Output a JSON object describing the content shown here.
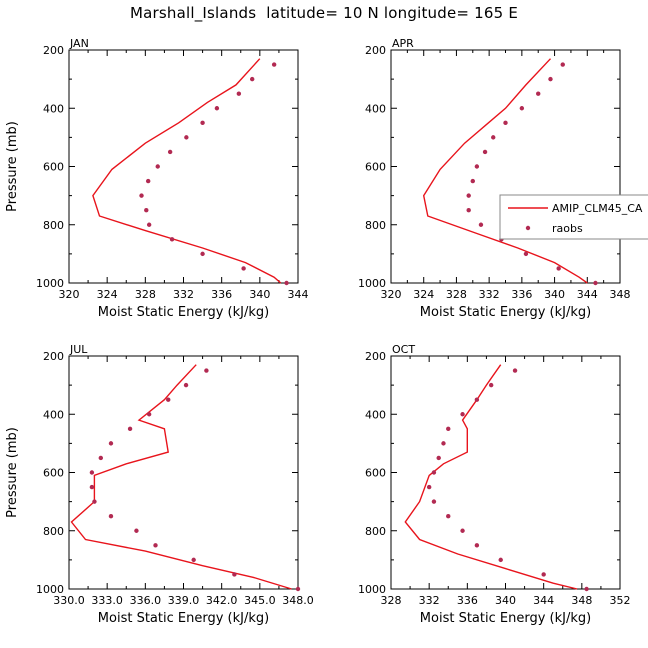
{
  "title": "Marshall_Islands  latitude= 10 N longitude= 165 E",
  "colors": {
    "model": "#e8141c",
    "obs": "#b22a52",
    "axis": "#000000"
  },
  "legend": {
    "entries": [
      "AMIP_CLM45_CA",
      "raobs"
    ],
    "placement": "right, overlapping APR panel"
  },
  "chart_data": [
    {
      "type": "line",
      "panel": "JAN",
      "xlabel": "Moist Static Energy (kJ/kg)",
      "ylabel": "Pressure (mb)",
      "xlim": [
        320,
        344
      ],
      "ylim": [
        1000,
        200
      ],
      "xticks": [
        "320",
        "324",
        "328",
        "332",
        "336",
        "340",
        "344"
      ],
      "yticks": [
        "200",
        "400",
        "600",
        "800",
        "1000"
      ],
      "series": [
        {
          "name": "AMIP_CLM45_CA",
          "style": "line",
          "pressure": [
            230,
            320,
            380,
            450,
            520,
            610,
            700,
            770,
            820,
            880,
            930,
            980,
            1000
          ],
          "values": [
            340.0,
            337.5,
            334.5,
            331.5,
            328.0,
            324.5,
            322.5,
            323.2,
            328.0,
            334.0,
            338.5,
            341.5,
            342.2
          ]
        },
        {
          "name": "raobs",
          "style": "markers",
          "pressure": [
            250,
            300,
            350,
            400,
            450,
            500,
            550,
            600,
            650,
            700,
            750,
            800,
            850,
            900,
            950,
            1000
          ],
          "values": [
            341.5,
            339.2,
            337.8,
            335.5,
            334.0,
            332.3,
            330.6,
            329.3,
            328.3,
            327.6,
            328.1,
            328.4,
            330.8,
            334.0,
            338.3,
            342.8
          ]
        }
      ]
    },
    {
      "type": "line",
      "panel": "APR",
      "xlabel": "Moist Static Energy (kJ/kg)",
      "ylabel": "",
      "xlim": [
        320,
        348
      ],
      "ylim": [
        1000,
        200
      ],
      "xticks": [
        "320",
        "324",
        "328",
        "332",
        "336",
        "340",
        "344",
        "348"
      ],
      "yticks": [
        "200",
        "400",
        "600",
        "800",
        "1000"
      ],
      "series": [
        {
          "name": "AMIP_CLM45_CA",
          "style": "line",
          "pressure": [
            230,
            320,
            400,
            460,
            520,
            610,
            700,
            770,
            830,
            880,
            930,
            980,
            1000
          ],
          "values": [
            339.5,
            336.5,
            334.0,
            331.5,
            329.0,
            326.0,
            324.0,
            324.5,
            330.5,
            335.5,
            340.0,
            343.0,
            344.0
          ]
        },
        {
          "name": "raobs",
          "style": "markers",
          "pressure": [
            250,
            300,
            350,
            400,
            450,
            500,
            550,
            600,
            650,
            700,
            750,
            800,
            850,
            900,
            950,
            1000
          ],
          "values": [
            341.0,
            339.5,
            338.0,
            336.0,
            334.0,
            332.5,
            331.5,
            330.5,
            330.0,
            329.5,
            329.5,
            331.0,
            333.5,
            336.5,
            340.5,
            345.0
          ]
        }
      ]
    },
    {
      "type": "line",
      "panel": "JUL",
      "xlabel": "Moist Static Energy (kJ/kg)",
      "ylabel": "Pressure (mb)",
      "xlim": [
        330,
        348
      ],
      "ylim": [
        1000,
        200
      ],
      "xticks": [
        "330.0",
        "333.0",
        "336.0",
        "339.0",
        "342.0",
        "345.0",
        "348.0"
      ],
      "yticks": [
        "200",
        "400",
        "600",
        "800",
        "1000"
      ],
      "series": [
        {
          "name": "AMIP_CLM45_CA",
          "style": "line",
          "pressure": [
            230,
            300,
            350,
            420,
            450,
            530,
            570,
            610,
            700,
            770,
            830,
            870,
            920,
            960,
            1000
          ],
          "values": [
            340.0,
            338.5,
            337.5,
            335.5,
            337.5,
            337.8,
            334.5,
            332.0,
            332.0,
            330.2,
            331.3,
            336.0,
            340.5,
            344.5,
            347.5
          ]
        },
        {
          "name": "raobs",
          "style": "markers",
          "pressure": [
            250,
            300,
            350,
            400,
            450,
            500,
            550,
            600,
            650,
            700,
            750,
            800,
            850,
            900,
            950,
            1000
          ],
          "values": [
            340.8,
            339.2,
            337.8,
            336.3,
            334.8,
            333.3,
            332.5,
            331.8,
            331.8,
            332.0,
            333.3,
            335.3,
            336.8,
            339.8,
            343.0,
            348.0
          ]
        }
      ]
    },
    {
      "type": "line",
      "panel": "OCT",
      "xlabel": "Moist Static Energy (kJ/kg)",
      "ylabel": "",
      "xlim": [
        328,
        352
      ],
      "ylim": [
        1000,
        200
      ],
      "xticks": [
        "328",
        "332",
        "336",
        "340",
        "344",
        "348",
        "352"
      ],
      "yticks": [
        "200",
        "400",
        "600",
        "800",
        "1000"
      ],
      "series": [
        {
          "name": "AMIP_CLM45_CA",
          "style": "line",
          "pressure": [
            230,
            300,
            350,
            420,
            450,
            530,
            570,
            610,
            700,
            770,
            830,
            880,
            930,
            980,
            1000
          ],
          "values": [
            339.5,
            338.0,
            337.0,
            335.5,
            336.0,
            336.0,
            333.5,
            332.0,
            331.0,
            329.5,
            331.0,
            335.0,
            340.0,
            345.0,
            347.5
          ]
        },
        {
          "name": "raobs",
          "style": "markers",
          "pressure": [
            250,
            300,
            350,
            400,
            450,
            500,
            550,
            600,
            650,
            700,
            750,
            800,
            850,
            900,
            950,
            1000
          ],
          "values": [
            341.0,
            338.5,
            337.0,
            335.5,
            334.0,
            333.5,
            333.0,
            332.5,
            332.0,
            332.5,
            334.0,
            335.5,
            337.0,
            339.5,
            344.0,
            348.5
          ]
        }
      ]
    }
  ]
}
